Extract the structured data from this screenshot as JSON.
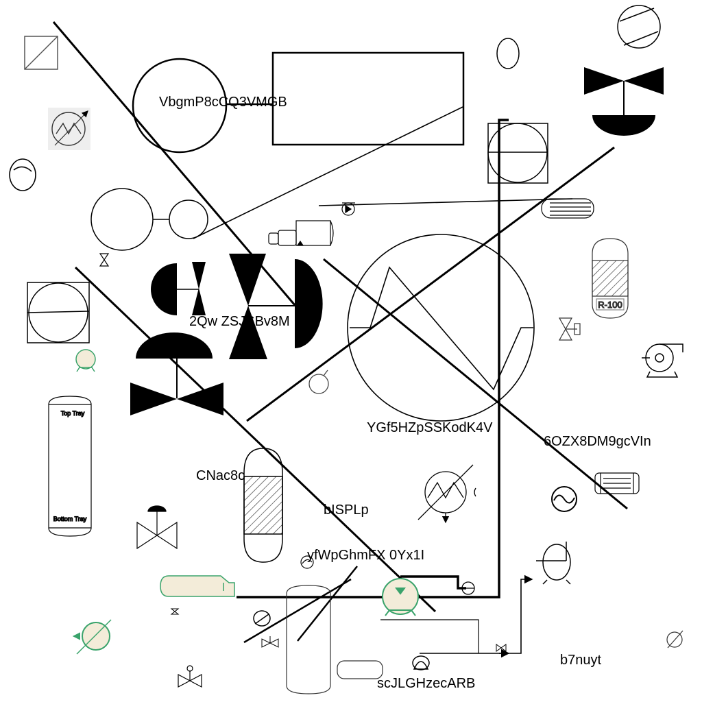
{
  "labels": {
    "compressor_tag": "VbgmP8cCQ3VMGB",
    "valve_tag": "2Qw ZSJSBv8M",
    "heater_tag": "YGf5HZpSSKodK4V",
    "exchanger_tag": "6OZX8DM9gcVIn",
    "drum_tag": "CNac8c",
    "mid_tag": "bISPLp",
    "pump_tag": "yfWpGhmFX 0Yx1I",
    "bottom_tag": "scJLGHzecARB",
    "corner_tag": "b7nuyt"
  },
  "column": {
    "top": "Top Tray",
    "bottom": "Bottom Tray"
  },
  "reactor": {
    "tag": "R-100"
  },
  "colors": {
    "line": "#000000",
    "accent_fill": "#f3ecd9",
    "accent_stroke": "#3aa36b"
  }
}
